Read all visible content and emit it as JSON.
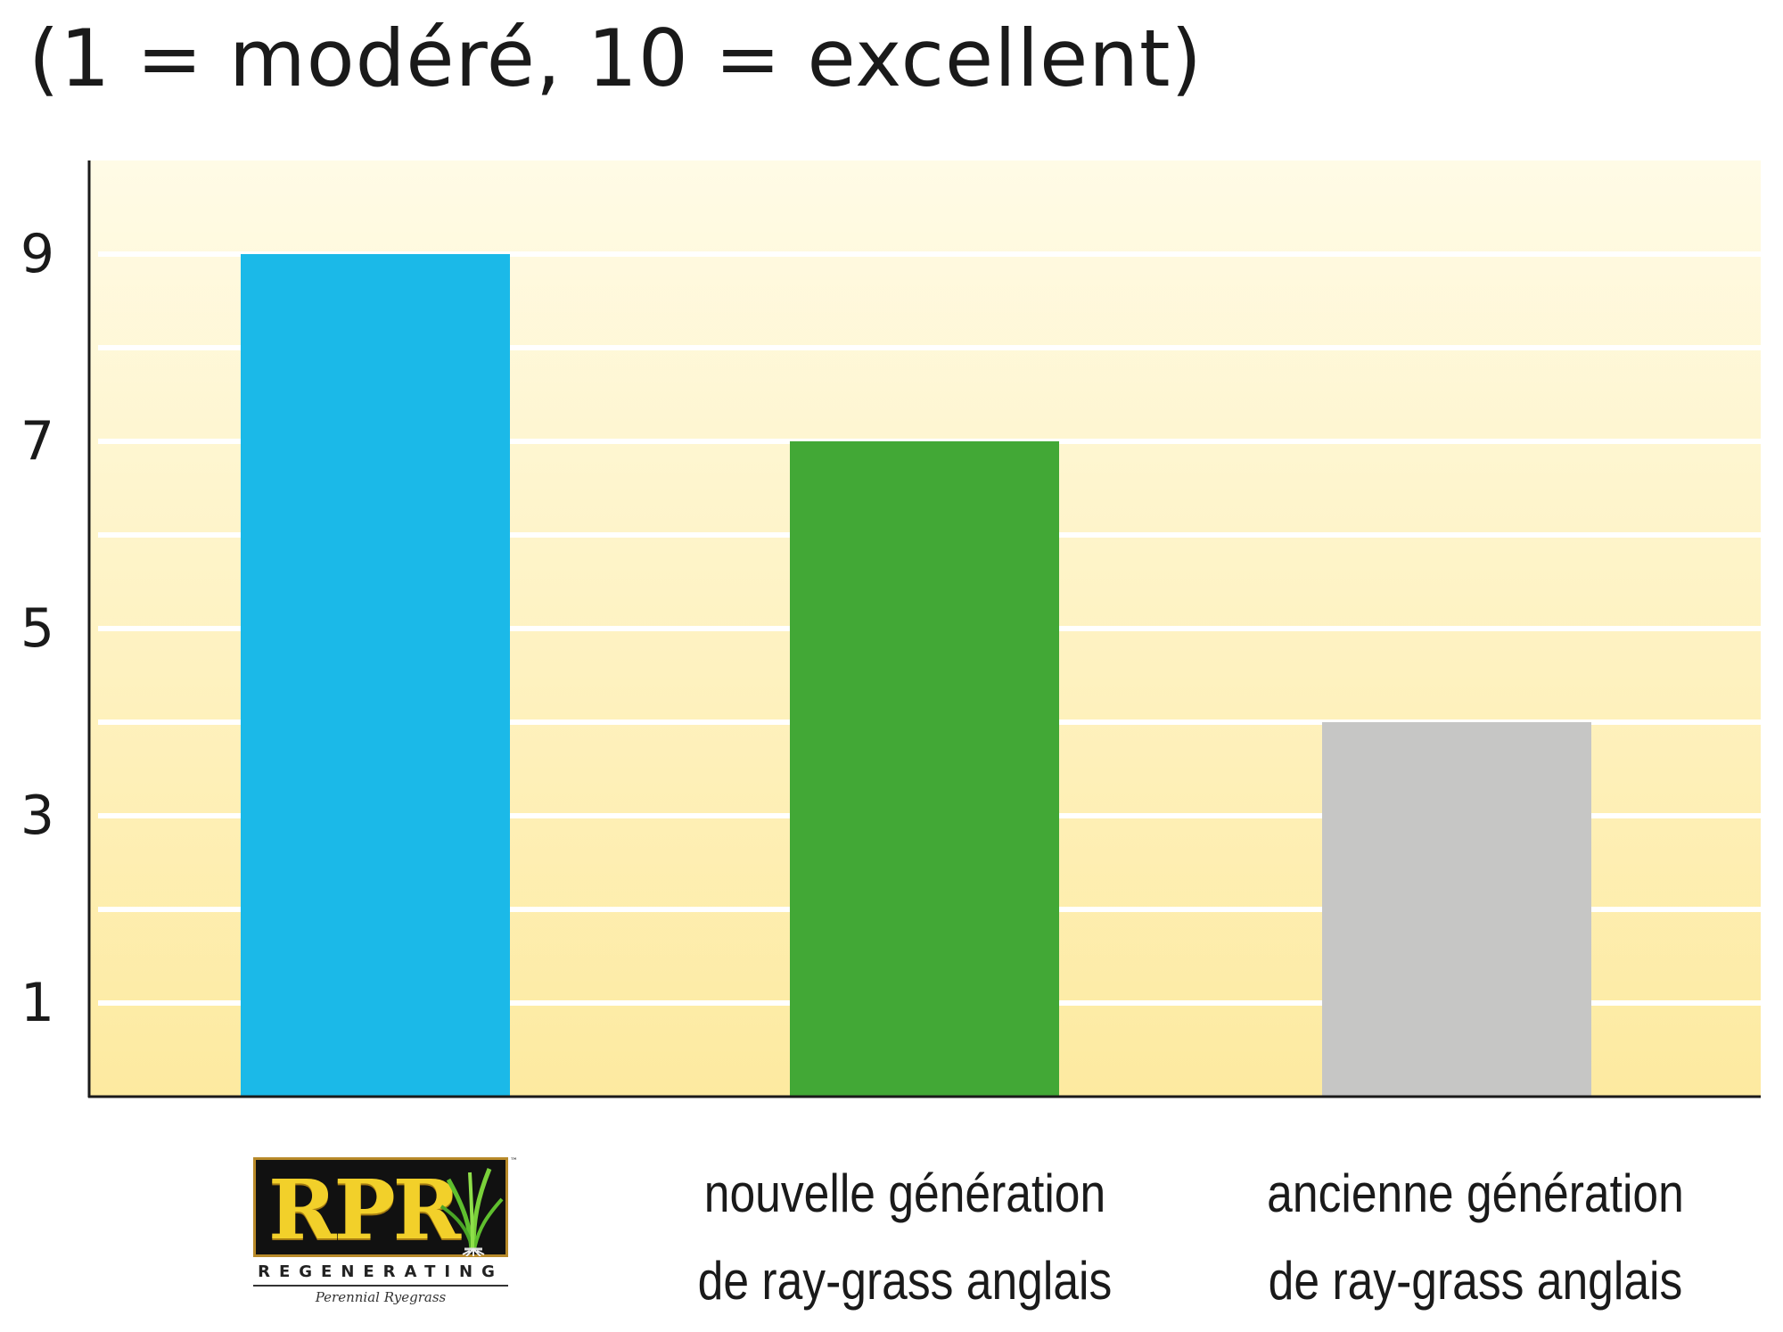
{
  "chart_data": {
    "type": "bar",
    "title": "(1 = modéré, 10 = excellent)",
    "categories": [
      "RPR REGENERATING Perennial Ryegrass",
      "nouvelle génération de ray-grass anglais",
      "ancienne génération de ray-grass anglais"
    ],
    "category_lines": [
      [
        "nouvelle génération",
        "de ray-grass anglais"
      ],
      [
        "ancienne génération",
        "de ray-grass anglais"
      ]
    ],
    "values": [
      9,
      7,
      4
    ],
    "bar_colors": [
      "#1bb9e8",
      "#42a836",
      "#c6c6c5"
    ],
    "ylim": [
      0,
      10
    ],
    "yticks": [
      1,
      3,
      5,
      7,
      9
    ],
    "ytick_labels": [
      "1",
      "3",
      "5",
      "7",
      "9"
    ],
    "grid": true,
    "gridline_step": 1,
    "background_gradient": [
      "#fffbe6",
      "#fdeaa0"
    ],
    "xlabel": "",
    "ylabel": ""
  },
  "logo": {
    "letters": "RPR",
    "wordmark": "REGENERATING",
    "subtitle": "Perennial Ryegrass",
    "trademark": "™",
    "icon": "grass-tuft-icon"
  }
}
